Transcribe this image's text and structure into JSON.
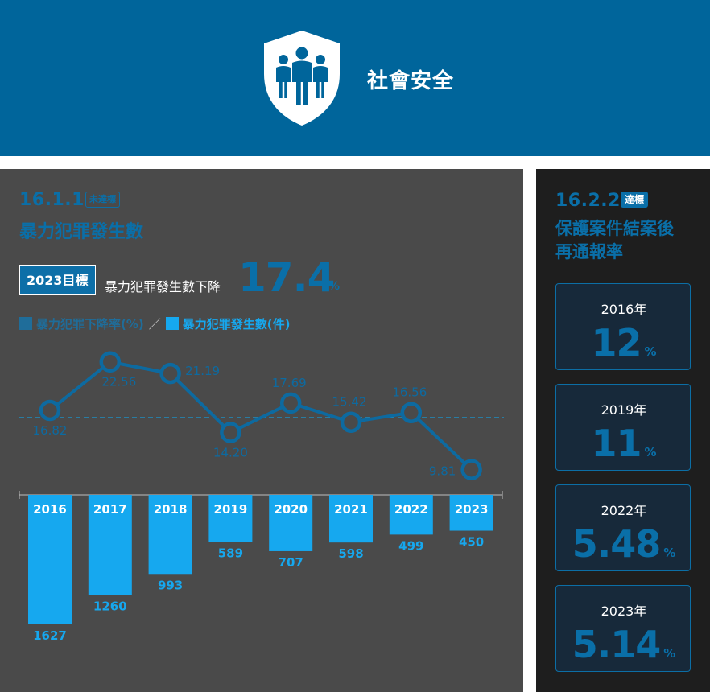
{
  "header": {
    "title": "社會安全",
    "icon": "shield-people-icon"
  },
  "left_indicator": {
    "code": "16.1.1",
    "status": "未達標",
    "title": "暴力犯罪發生數",
    "target_label": "2023目標",
    "target_text": "暴力犯罪發生數下降",
    "target_value": "17.4",
    "target_unit": "%"
  },
  "legend": {
    "rate_label": "暴力犯罪下降率(%)",
    "separator": "／",
    "count_label": "暴力犯罪發生數(件)"
  },
  "chart_data": {
    "type": "bar",
    "categories": [
      "2016",
      "2017",
      "2018",
      "2019",
      "2020",
      "2021",
      "2022",
      "2023"
    ],
    "series": [
      {
        "name": "暴力犯罪下降率(%)",
        "type": "line",
        "values": [
          16.82,
          22.56,
          21.19,
          14.2,
          17.69,
          15.42,
          16.56,
          9.81
        ],
        "labels": [
          "16.82",
          "22.56",
          "21.19",
          "14.20",
          "17.69",
          "15.42",
          "16.56",
          "9.81"
        ]
      },
      {
        "name": "暴力犯罪發生數(件)",
        "type": "bar",
        "values": [
          1627,
          1260,
          993,
          589,
          707,
          598,
          499,
          450
        ]
      }
    ],
    "reference_line": "target 17.4%",
    "colors": {
      "line": "#0d6aa0",
      "bar": "#16a8ef",
      "reference": "#169bd6"
    }
  },
  "right_indicator": {
    "code": "16.2.2",
    "status": "達標",
    "title_line1": "保護案件結案後",
    "title_line2": "再通報率",
    "cards": [
      {
        "year": "2016年",
        "value": "12",
        "unit": "%"
      },
      {
        "year": "2019年",
        "value": "11",
        "unit": "%"
      },
      {
        "year": "2022年",
        "value": "5.48",
        "unit": "%"
      },
      {
        "year": "2023年",
        "value": "5.14",
        "unit": "%"
      }
    ]
  },
  "colors": {
    "header_bg": "#00659b",
    "accent": "#0a6fa8",
    "bar": "#16a8ef",
    "panel_left": "#4a4a4a",
    "panel_right": "#1e1e1e"
  }
}
